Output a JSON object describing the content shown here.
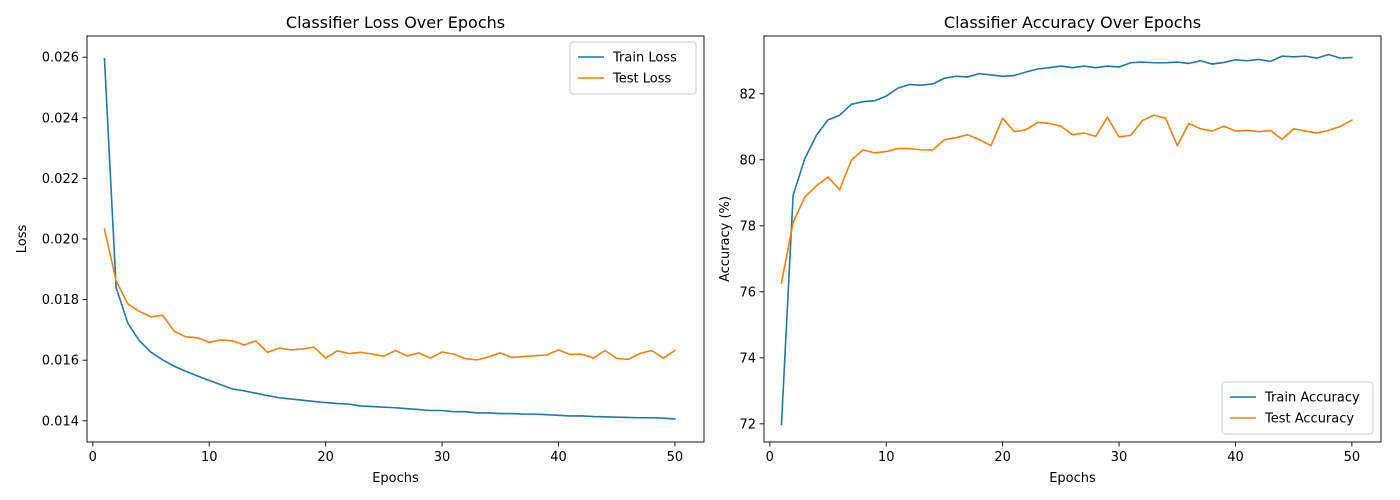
{
  "chart_data": [
    {
      "type": "line",
      "title": "Classifier Loss Over Epochs",
      "xlabel": "Epochs",
      "ylabel": "Loss",
      "xlim": [
        -0.5,
        52.5
      ],
      "ylim": [
        0.0133,
        0.0267
      ],
      "xticks": [
        0,
        10,
        20,
        30,
        40,
        50
      ],
      "yticks": [
        0.014,
        0.016,
        0.018,
        0.02,
        0.022,
        0.024,
        0.026
      ],
      "xtick_labels": [
        "0",
        "10",
        "20",
        "30",
        "40",
        "50"
      ],
      "ytick_labels": [
        "0.014",
        "0.016",
        "0.018",
        "0.020",
        "0.022",
        "0.024",
        "0.026"
      ],
      "legend": "top-right",
      "grid": false,
      "x": [
        1,
        2,
        3,
        4,
        5,
        6,
        7,
        8,
        9,
        10,
        11,
        12,
        13,
        14,
        15,
        16,
        17,
        18,
        19,
        20,
        21,
        22,
        23,
        24,
        25,
        26,
        27,
        28,
        29,
        30,
        31,
        32,
        33,
        34,
        35,
        36,
        37,
        38,
        39,
        40,
        41,
        42,
        43,
        44,
        45,
        46,
        47,
        48,
        49,
        50
      ],
      "series": [
        {
          "name": "Train Loss",
          "color": "#1f77b4",
          "values": [
            0.02595,
            0.0184,
            0.01723,
            0.01664,
            0.01626,
            0.01601,
            0.0158,
            0.01563,
            0.01548,
            0.01533,
            0.01519,
            0.01505,
            0.01499,
            0.01491,
            0.01483,
            0.01476,
            0.01472,
            0.01468,
            0.01464,
            0.0146,
            0.01457,
            0.01455,
            0.01449,
            0.01447,
            0.01445,
            0.01443,
            0.0144,
            0.01437,
            0.01434,
            0.01434,
            0.0143,
            0.0143,
            0.01426,
            0.01426,
            0.01424,
            0.01424,
            0.01422,
            0.01422,
            0.0142,
            0.01418,
            0.01416,
            0.01416,
            0.01414,
            0.01413,
            0.01412,
            0.01411,
            0.0141,
            0.0141,
            0.01409,
            0.01406
          ]
        },
        {
          "name": "Test Loss",
          "color": "#ff7f0e",
          "values": [
            0.02033,
            0.01862,
            0.01786,
            0.01761,
            0.01743,
            0.01748,
            0.01695,
            0.01677,
            0.01674,
            0.01659,
            0.01667,
            0.01664,
            0.0165,
            0.01664,
            0.01626,
            0.0164,
            0.01634,
            0.01637,
            0.01643,
            0.01607,
            0.01631,
            0.01622,
            0.01626,
            0.0162,
            0.01613,
            0.01632,
            0.01614,
            0.01624,
            0.01607,
            0.01627,
            0.0162,
            0.01605,
            0.01601,
            0.01611,
            0.01624,
            0.01609,
            0.01612,
            0.01615,
            0.01617,
            0.01634,
            0.01619,
            0.0162,
            0.01607,
            0.01632,
            0.01606,
            0.01603,
            0.01622,
            0.01632,
            0.01607,
            0.01632
          ]
        }
      ]
    },
    {
      "type": "line",
      "title": "Classifier Accuracy Over Epochs",
      "xlabel": "Epochs",
      "ylabel": "Accuracy (%)",
      "xlim": [
        -0.5,
        52.5
      ],
      "ylim": [
        71.45,
        83.75
      ],
      "xticks": [
        0,
        10,
        20,
        30,
        40,
        50
      ],
      "yticks": [
        72,
        74,
        76,
        78,
        80,
        82
      ],
      "xtick_labels": [
        "0",
        "10",
        "20",
        "30",
        "40",
        "50"
      ],
      "ytick_labels": [
        "72",
        "74",
        "76",
        "78",
        "80",
        "82"
      ],
      "legend": "bottom-right",
      "grid": false,
      "x": [
        1,
        2,
        3,
        4,
        5,
        6,
        7,
        8,
        9,
        10,
        11,
        12,
        13,
        14,
        15,
        16,
        17,
        18,
        19,
        20,
        21,
        22,
        23,
        24,
        25,
        26,
        27,
        28,
        29,
        30,
        31,
        32,
        33,
        34,
        35,
        36,
        37,
        38,
        39,
        40,
        41,
        42,
        43,
        44,
        45,
        46,
        47,
        48,
        49,
        50
      ],
      "series": [
        {
          "name": "Train Accuracy",
          "color": "#1f77b4",
          "values": [
            71.98,
            78.92,
            80.03,
            80.74,
            81.21,
            81.35,
            81.68,
            81.76,
            81.79,
            81.93,
            82.17,
            82.28,
            82.26,
            82.3,
            82.47,
            82.53,
            82.51,
            82.61,
            82.57,
            82.53,
            82.55,
            82.66,
            82.75,
            82.79,
            82.84,
            82.79,
            82.84,
            82.79,
            82.84,
            82.81,
            82.94,
            82.96,
            82.94,
            82.94,
            82.96,
            82.92,
            83.0,
            82.9,
            82.95,
            83.03,
            83.0,
            83.04,
            82.98,
            83.14,
            83.12,
            83.14,
            83.08,
            83.19,
            83.08,
            83.1
          ]
        },
        {
          "name": "Test Accuracy",
          "color": "#ff7f0e",
          "values": [
            76.27,
            78.1,
            78.87,
            79.21,
            79.48,
            79.09,
            79.99,
            80.3,
            80.21,
            80.25,
            80.34,
            80.34,
            80.3,
            80.3,
            80.61,
            80.67,
            80.76,
            80.61,
            80.43,
            81.26,
            80.85,
            80.91,
            81.13,
            81.1,
            81.02,
            80.76,
            80.81,
            80.71,
            81.29,
            80.69,
            80.74,
            81.19,
            81.35,
            81.26,
            80.43,
            81.1,
            80.94,
            80.87,
            81.02,
            80.87,
            80.89,
            80.85,
            80.89,
            80.62,
            80.94,
            80.87,
            80.81,
            80.89,
            81.01,
            81.2
          ]
        }
      ]
    }
  ]
}
